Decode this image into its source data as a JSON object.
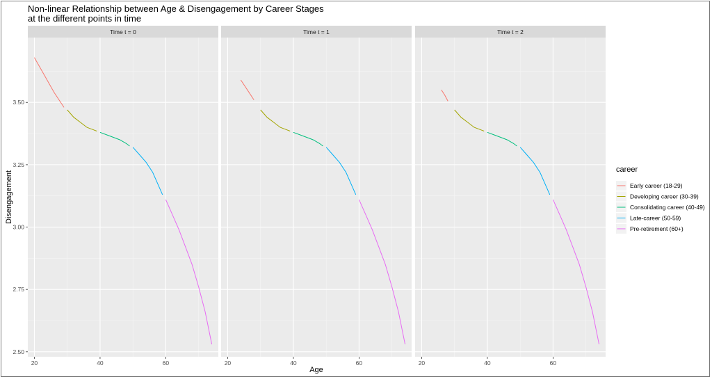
{
  "chart_data": {
    "type": "line",
    "title": "Non-linear Relationship between Age & Disengagement by Career Stages",
    "subtitle": "at the different points in time",
    "xlabel": "Age",
    "ylabel": "Disengagement",
    "xlim": [
      18,
      76
    ],
    "ylim": [
      2.48,
      3.76
    ],
    "x_ticks": [
      20,
      40,
      60
    ],
    "y_ticks": [
      2.5,
      2.75,
      3.0,
      3.25,
      3.5
    ],
    "y_tick_labels": [
      "2.50",
      "2.75",
      "3.00",
      "3.25",
      "3.50"
    ],
    "grid": true,
    "legend_position": "right",
    "legend_title": "career",
    "panels": [
      {
        "label": "Time t = 0",
        "series": [
          {
            "name": "Early career (18-29)",
            "color": "#F8766D",
            "x": [
              20,
              23,
              26,
              29
            ],
            "y": [
              3.68,
              3.61,
              3.54,
              3.48
            ]
          },
          {
            "name": "Developing career (30-39)",
            "color": "#A3A500",
            "x": [
              30,
              32,
              34,
              36,
              38,
              39
            ],
            "y": [
              3.47,
              3.44,
              3.42,
              3.4,
              3.39,
              3.385
            ]
          },
          {
            "name": "Consolidating career (40-49)",
            "color": "#00BF7D",
            "x": [
              40,
              42,
              44,
              46,
              48,
              49
            ],
            "y": [
              3.38,
              3.37,
              3.36,
              3.35,
              3.335,
              3.325
            ]
          },
          {
            "name": "Late-career (50-59)",
            "color": "#00B0F6",
            "x": [
              50,
              52,
              54,
              56,
              58,
              59
            ],
            "y": [
              3.32,
              3.29,
              3.26,
              3.22,
              3.16,
              3.13
            ]
          },
          {
            "name": "Pre-retirement (60+)",
            "color": "#E76BF3",
            "x": [
              60,
              62,
              64,
              66,
              68,
              70,
              72,
              74
            ],
            "y": [
              3.11,
              3.05,
              2.99,
              2.92,
              2.85,
              2.76,
              2.66,
              2.53
            ]
          }
        ]
      },
      {
        "label": "Time t = 1",
        "series": [
          {
            "name": "Early career (18-29)",
            "color": "#F8766D",
            "x": [
              24,
              26,
              28
            ],
            "y": [
              3.59,
              3.55,
              3.51
            ]
          },
          {
            "name": "Developing career (30-39)",
            "color": "#A3A500",
            "x": [
              30,
              32,
              34,
              36,
              38,
              39
            ],
            "y": [
              3.47,
              3.44,
              3.42,
              3.4,
              3.39,
              3.385
            ]
          },
          {
            "name": "Consolidating career (40-49)",
            "color": "#00BF7D",
            "x": [
              40,
              42,
              44,
              46,
              48,
              49
            ],
            "y": [
              3.38,
              3.37,
              3.36,
              3.35,
              3.335,
              3.325
            ]
          },
          {
            "name": "Late-career (50-59)",
            "color": "#00B0F6",
            "x": [
              50,
              52,
              54,
              56,
              58,
              59
            ],
            "y": [
              3.32,
              3.29,
              3.26,
              3.22,
              3.16,
              3.13
            ]
          },
          {
            "name": "Pre-retirement (60+)",
            "color": "#E76BF3",
            "x": [
              60,
              62,
              64,
              66,
              68,
              70,
              72,
              74
            ],
            "y": [
              3.11,
              3.05,
              2.99,
              2.92,
              2.85,
              2.76,
              2.66,
              2.53
            ]
          }
        ]
      },
      {
        "label": "Time t = 2",
        "series": [
          {
            "name": "Early career (18-29)",
            "color": "#F8766D",
            "x": [
              26,
              27,
              28
            ],
            "y": [
              3.55,
              3.53,
              3.505
            ]
          },
          {
            "name": "Developing career (30-39)",
            "color": "#A3A500",
            "x": [
              30,
              32,
              34,
              36,
              38,
              39
            ],
            "y": [
              3.47,
              3.44,
              3.42,
              3.4,
              3.39,
              3.385
            ]
          },
          {
            "name": "Consolidating career (40-49)",
            "color": "#00BF7D",
            "x": [
              40,
              42,
              44,
              46,
              48,
              49
            ],
            "y": [
              3.38,
              3.37,
              3.36,
              3.35,
              3.335,
              3.325
            ]
          },
          {
            "name": "Late-career (50-59)",
            "color": "#00B0F6",
            "x": [
              50,
              52,
              54,
              56,
              58,
              59
            ],
            "y": [
              3.32,
              3.29,
              3.26,
              3.22,
              3.16,
              3.13
            ]
          },
          {
            "name": "Pre-retirement (60+)",
            "color": "#E76BF3",
            "x": [
              60,
              62,
              64,
              66,
              68,
              70,
              72,
              74
            ],
            "y": [
              3.11,
              3.05,
              2.99,
              2.92,
              2.85,
              2.76,
              2.66,
              2.53
            ]
          }
        ]
      }
    ],
    "legend": [
      {
        "name": "Early career (18-29)",
        "color": "#F8766D"
      },
      {
        "name": "Developing career (30-39)",
        "color": "#A3A500"
      },
      {
        "name": "Consolidating career (40-49)",
        "color": "#00BF7D"
      },
      {
        "name": "Late-career (50-59)",
        "color": "#00B0F6"
      },
      {
        "name": "Pre-retirement (60+)",
        "color": "#E76BF3"
      }
    ]
  }
}
